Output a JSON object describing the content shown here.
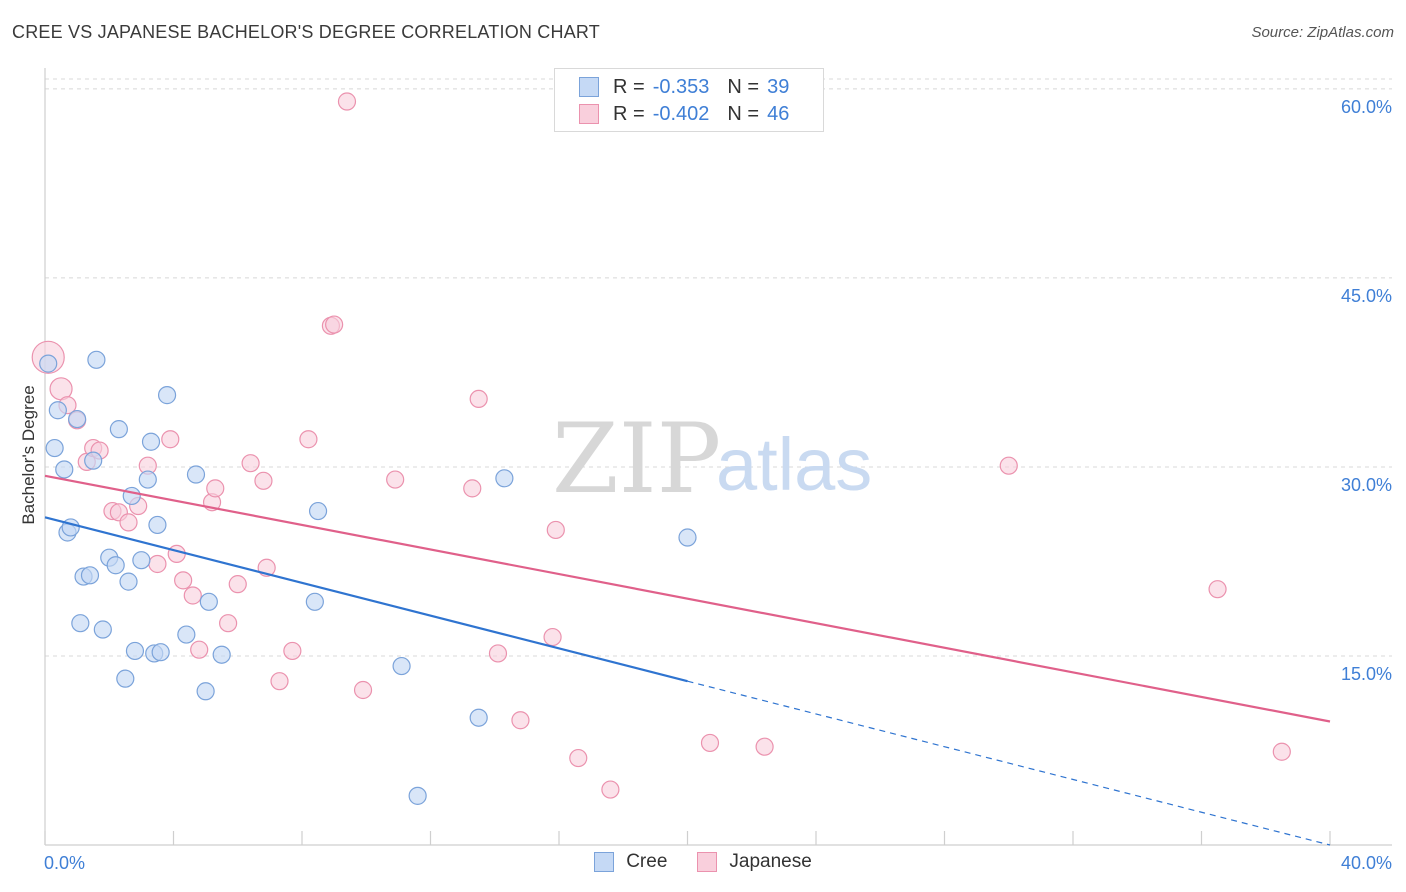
{
  "title": "CREE VS JAPANESE BACHELOR'S DEGREE CORRELATION CHART",
  "source": "Source: ZipAtlas.com",
  "watermark": {
    "zip": "ZIP",
    "atlas": "atlas"
  },
  "legend": {
    "rows": [
      {
        "r_label": "R =",
        "r_value": "-0.353",
        "n_label": "N =",
        "n_value": "39"
      },
      {
        "r_label": "R =",
        "r_value": "-0.402",
        "n_label": "N =",
        "n_value": "46"
      }
    ]
  },
  "bottom_legend": [
    "Cree",
    "Japanese"
  ],
  "colors": {
    "cree_fill": "#c5d9f5",
    "cree_stroke": "#7ba3da",
    "cree_line": "#2f74d0",
    "japanese_fill": "#f9cfdc",
    "japanese_stroke": "#eb92ae",
    "japanese_line": "#e0608a",
    "tick": "#3f7fd6",
    "grid": "#d8d8d8"
  },
  "chart_data": {
    "type": "scatter",
    "title": "CREE VS JAPANESE BACHELOR'S DEGREE CORRELATION CHART",
    "xlabel": "",
    "ylabel": "Bachelor's Degree",
    "xlim": [
      0,
      40
    ],
    "ylim": [
      0,
      61.5
    ],
    "x_tick_labels": [
      "0.0%",
      "40.0%"
    ],
    "y_ticks": [
      15,
      30,
      45,
      60
    ],
    "y_tick_labels": [
      "15.0%",
      "30.0%",
      "45.0%",
      "60.0%"
    ],
    "series": [
      {
        "name": "Cree",
        "r": -0.353,
        "n": 39,
        "trend": {
          "x0": 0,
          "y0": 26.0,
          "x1": 20.0,
          "y1": 13.0,
          "dash_to_x": 40.0,
          "dash_to_y": 0.0
        },
        "points": [
          [
            0.1,
            38.2
          ],
          [
            0.4,
            34.5
          ],
          [
            0.3,
            31.5
          ],
          [
            0.6,
            29.8
          ],
          [
            0.7,
            24.8
          ],
          [
            0.8,
            25.2
          ],
          [
            1.0,
            33.8
          ],
          [
            1.2,
            21.3
          ],
          [
            1.4,
            21.4
          ],
          [
            1.5,
            30.5
          ],
          [
            1.6,
            38.5
          ],
          [
            1.1,
            17.6
          ],
          [
            1.8,
            17.1
          ],
          [
            2.0,
            22.8
          ],
          [
            2.2,
            22.2
          ],
          [
            2.3,
            33.0
          ],
          [
            2.5,
            13.2
          ],
          [
            2.6,
            20.9
          ],
          [
            2.7,
            27.7
          ],
          [
            2.8,
            15.4
          ],
          [
            3.0,
            22.6
          ],
          [
            3.2,
            29.0
          ],
          [
            3.3,
            32.0
          ],
          [
            3.4,
            15.2
          ],
          [
            3.5,
            25.4
          ],
          [
            3.6,
            15.3
          ],
          [
            3.8,
            35.7
          ],
          [
            4.4,
            16.7
          ],
          [
            4.7,
            29.4
          ],
          [
            5.0,
            12.2
          ],
          [
            5.1,
            19.3
          ],
          [
            5.5,
            15.1
          ],
          [
            8.4,
            19.3
          ],
          [
            8.5,
            26.5
          ],
          [
            11.1,
            14.2
          ],
          [
            11.6,
            3.9
          ],
          [
            13.5,
            10.1
          ],
          [
            14.3,
            29.1
          ],
          [
            20.0,
            24.4
          ]
        ]
      },
      {
        "name": "Japanese",
        "r": -0.402,
        "n": 46,
        "trend": {
          "x0": 0,
          "y0": 29.3,
          "x1": 40.0,
          "y1": 9.8
        },
        "points": [
          [
            0.1,
            38.7
          ],
          [
            0.5,
            36.2
          ],
          [
            0.7,
            34.9
          ],
          [
            1.0,
            33.7
          ],
          [
            1.3,
            30.4
          ],
          [
            1.5,
            31.5
          ],
          [
            1.7,
            31.3
          ],
          [
            2.1,
            26.5
          ],
          [
            2.3,
            26.4
          ],
          [
            2.6,
            25.6
          ],
          [
            2.9,
            26.9
          ],
          [
            3.2,
            30.1
          ],
          [
            3.5,
            22.3
          ],
          [
            3.9,
            32.2
          ],
          [
            4.1,
            23.1
          ],
          [
            4.3,
            21.0
          ],
          [
            4.6,
            19.8
          ],
          [
            4.8,
            15.5
          ],
          [
            5.2,
            27.2
          ],
          [
            5.3,
            28.3
          ],
          [
            5.7,
            17.6
          ],
          [
            6.0,
            20.7
          ],
          [
            6.4,
            30.3
          ],
          [
            6.8,
            28.9
          ],
          [
            6.9,
            22.0
          ],
          [
            7.3,
            13.0
          ],
          [
            7.7,
            15.4
          ],
          [
            8.2,
            32.2
          ],
          [
            8.9,
            41.2
          ],
          [
            9.0,
            41.3
          ],
          [
            9.4,
            59.0
          ],
          [
            9.9,
            12.3
          ],
          [
            10.9,
            29.0
          ],
          [
            13.3,
            28.3
          ],
          [
            13.5,
            35.4
          ],
          [
            14.1,
            15.2
          ],
          [
            14.8,
            9.9
          ],
          [
            15.8,
            16.5
          ],
          [
            15.9,
            25.0
          ],
          [
            16.6,
            6.9
          ],
          [
            17.6,
            4.4
          ],
          [
            20.7,
            8.1
          ],
          [
            22.4,
            7.8
          ],
          [
            30.0,
            30.1
          ],
          [
            36.5,
            20.3
          ],
          [
            38.5,
            7.4
          ]
        ]
      }
    ]
  }
}
